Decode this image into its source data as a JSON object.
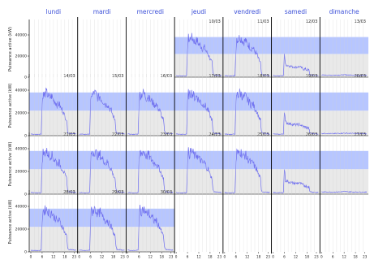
{
  "chart_data": {
    "type": "line",
    "weekdays": [
      "lundi",
      "mardi",
      "mercredi",
      "jeudi",
      "vendredi",
      "samedi",
      "dimanche"
    ],
    "ylabel": "Puissance active (kW)",
    "y_ticks": [
      "0",
      "20000",
      "40000"
    ],
    "x_ticks": [
      "0",
      "6",
      "12",
      "18",
      "23"
    ],
    "ylim": [
      0,
      50000
    ],
    "xlim": [
      0,
      24
    ],
    "band_upper": [
      22000,
      38000
    ],
    "band_lower": [
      0,
      22000
    ],
    "colors": {
      "line": "#6b6bf0",
      "band_upper": "#b7c6ff",
      "band_lower": "#e9e9e9",
      "grid": "#cfcfcf",
      "separator": "#000000"
    },
    "days": [
      {
        "row": 0,
        "col": 3,
        "date": "10/03",
        "profile": "weekday"
      },
      {
        "row": 0,
        "col": 4,
        "date": "11/03",
        "profile": "weekday"
      },
      {
        "row": 0,
        "col": 5,
        "date": "12/03",
        "profile": "saturday"
      },
      {
        "row": 0,
        "col": 6,
        "date": "13/03",
        "profile": "sunday"
      },
      {
        "row": 1,
        "col": 0,
        "date": "14/03",
        "profile": "weekday"
      },
      {
        "row": 1,
        "col": 1,
        "date": "15/03",
        "profile": "weekday"
      },
      {
        "row": 1,
        "col": 2,
        "date": "16/03",
        "profile": "weekday"
      },
      {
        "row": 1,
        "col": 3,
        "date": "17/03",
        "profile": "weekday"
      },
      {
        "row": 1,
        "col": 4,
        "date": "18/03",
        "profile": "weekday"
      },
      {
        "row": 1,
        "col": 5,
        "date": "19/03",
        "profile": "saturday"
      },
      {
        "row": 1,
        "col": 6,
        "date": "20/03",
        "profile": "sunday"
      },
      {
        "row": 2,
        "col": 0,
        "date": "21/03",
        "profile": "weekday"
      },
      {
        "row": 2,
        "col": 1,
        "date": "22/03",
        "profile": "weekday"
      },
      {
        "row": 2,
        "col": 2,
        "date": "23/03",
        "profile": "weekday"
      },
      {
        "row": 2,
        "col": 3,
        "date": "24/03",
        "profile": "weekday"
      },
      {
        "row": 2,
        "col": 4,
        "date": "25/03",
        "profile": "weekday"
      },
      {
        "row": 2,
        "col": 5,
        "date": "26/03",
        "profile": "saturday"
      },
      {
        "row": 2,
        "col": 6,
        "date": "27/03",
        "profile": "sunday"
      },
      {
        "row": 3,
        "col": 0,
        "date": "28/03",
        "profile": "weekday"
      },
      {
        "row": 3,
        "col": 1,
        "date": "29/03",
        "profile": "weekday"
      },
      {
        "row": 3,
        "col": 2,
        "date": "30/03",
        "profile": "weekday"
      }
    ],
    "profiles": {
      "weekday": {
        "hours": [
          0,
          2,
          4,
          5.5,
          6,
          6.5,
          7,
          8,
          9,
          10,
          11,
          12,
          13,
          14,
          15,
          16,
          17,
          18,
          19,
          19.5,
          20,
          22,
          24
        ],
        "values": [
          1500,
          1200,
          1200,
          1500,
          28000,
          37000,
          35000,
          38000,
          36000,
          33000,
          35000,
          31000,
          30000,
          27000,
          28000,
          24000,
          22000,
          17000,
          14000,
          4000,
          2200,
          1800,
          1500
        ]
      },
      "saturday": {
        "hours": [
          0,
          3,
          5.5,
          6,
          6.5,
          8,
          10,
          12,
          14,
          16,
          18,
          19,
          19.5,
          21,
          24
        ],
        "values": [
          1500,
          1200,
          1500,
          23000,
          12000,
          11000,
          10000,
          9500,
          10000,
          8000,
          7000,
          6500,
          2500,
          1800,
          1500
        ]
      },
      "sunday": {
        "hours": [
          0,
          6,
          12,
          18,
          24
        ],
        "values": [
          2000,
          1800,
          2200,
          1900,
          1800
        ]
      }
    }
  }
}
